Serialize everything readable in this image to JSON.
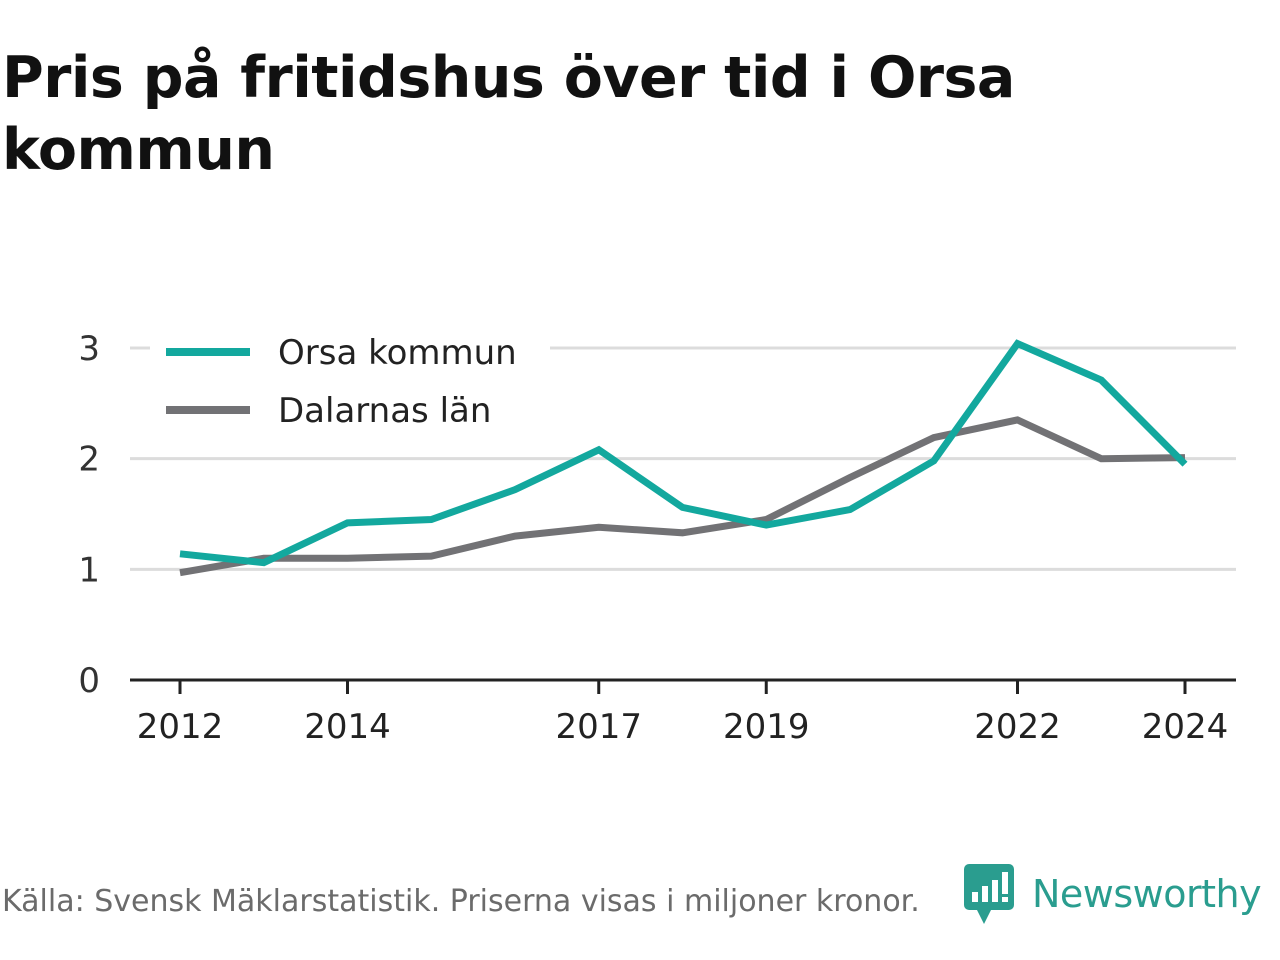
{
  "title": "Pris på fritidshus över tid i Orsa kommun",
  "footer": {
    "source": "Källa: Svensk Mäklarstatistik. Priserna visas i miljoner kronor."
  },
  "brand": {
    "name": "Newsworthy",
    "icon": "newsworthy-logo-icon",
    "color": "#2a9d8f"
  },
  "chart_data": {
    "type": "line",
    "title": "Pris på fritidshus över tid i Orsa kommun",
    "xlabel": "",
    "ylabel": "",
    "x": [
      2012,
      2013,
      2014,
      2015,
      2016,
      2017,
      2018,
      2019,
      2020,
      2021,
      2022,
      2023,
      2024
    ],
    "x_ticks": [
      "2012",
      "2014",
      "2017",
      "2019",
      "2022",
      "2024"
    ],
    "y_ticks": [
      "0",
      "1",
      "2",
      "3"
    ],
    "ylim": [
      0,
      3
    ],
    "xlim": [
      2012,
      2024
    ],
    "grid": true,
    "legend_position": "top-left",
    "series": [
      {
        "name": "Orsa kommun",
        "color": "#13a89e",
        "values": [
          1.14,
          1.06,
          1.42,
          1.45,
          1.72,
          2.08,
          1.56,
          1.4,
          1.54,
          1.98,
          3.04,
          2.71,
          1.95
        ]
      },
      {
        "name": "Dalarnas län",
        "color": "#727275",
        "values": [
          0.97,
          1.1,
          1.1,
          1.12,
          1.3,
          1.38,
          1.33,
          1.45,
          1.83,
          2.19,
          2.35,
          2.0,
          2.01
        ]
      }
    ]
  }
}
